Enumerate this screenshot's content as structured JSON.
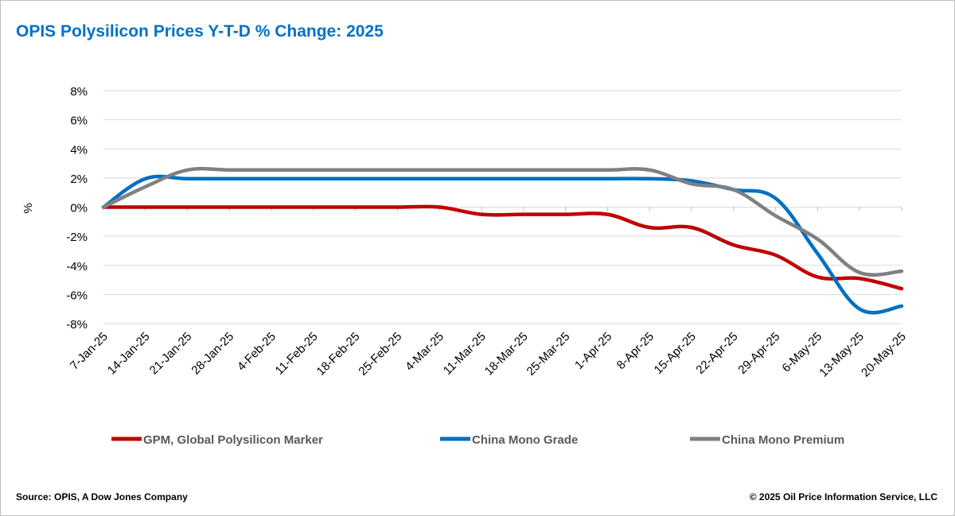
{
  "chart_title": "OPIS Polysilicon Prices Y-T-D % Change: 2025",
  "source": "Source: OPIS, A Dow Jones Company",
  "copyright": "© 2025 Oil Price Information Service, LLC",
  "chart_data": {
    "type": "line",
    "title": "OPIS Polysilicon Prices Y-T-D % Change: 2025",
    "xlabel": "",
    "ylabel": "%",
    "ylim": [
      -8,
      8
    ],
    "yticks": [
      8,
      6,
      4,
      2,
      0,
      -2,
      -4,
      -6,
      -8
    ],
    "ytick_labels": [
      "8%",
      "6%",
      "4%",
      "2%",
      "0%",
      "-2%",
      "-4%",
      "-6%",
      "-8%"
    ],
    "grid": true,
    "legend_position": "bottom",
    "categories": [
      "7-Jan-25",
      "14-Jan-25",
      "21-Jan-25",
      "28-Jan-25",
      "4-Feb-25",
      "11-Feb-25",
      "18-Feb-25",
      "25-Feb-25",
      "4-Mar-25",
      "11-Mar-25",
      "18-Mar-25",
      "25-Mar-25",
      "1-Apr-25",
      "8-Apr-25",
      "15-Apr-25",
      "22-Apr-25",
      "29-Apr-25",
      "6-May-25",
      "13-May-25",
      "20-May-25"
    ],
    "series": [
      {
        "name": "GPM, Global Polysilicon Marker",
        "color": "#c00000",
        "values": [
          0,
          0,
          0,
          0,
          0,
          0,
          0,
          0,
          0,
          -0.5,
          -0.5,
          -0.5,
          -0.5,
          -1.4,
          -1.4,
          -2.6,
          -3.3,
          -4.8,
          -4.9,
          -5.6
        ]
      },
      {
        "name": "China Mono Grade",
        "color": "#0070c0",
        "values": [
          0,
          1.95,
          1.95,
          1.95,
          1.95,
          1.95,
          1.95,
          1.95,
          1.95,
          1.95,
          1.95,
          1.95,
          1.95,
          1.95,
          1.8,
          1.2,
          0.6,
          -3.2,
          -7.0,
          -6.8
        ]
      },
      {
        "name": "China Mono Premium",
        "color": "#808080",
        "values": [
          0,
          1.4,
          2.55,
          2.55,
          2.55,
          2.55,
          2.55,
          2.55,
          2.55,
          2.55,
          2.55,
          2.55,
          2.55,
          2.55,
          1.6,
          1.2,
          -0.6,
          -2.2,
          -4.5,
          -4.4
        ]
      }
    ]
  }
}
